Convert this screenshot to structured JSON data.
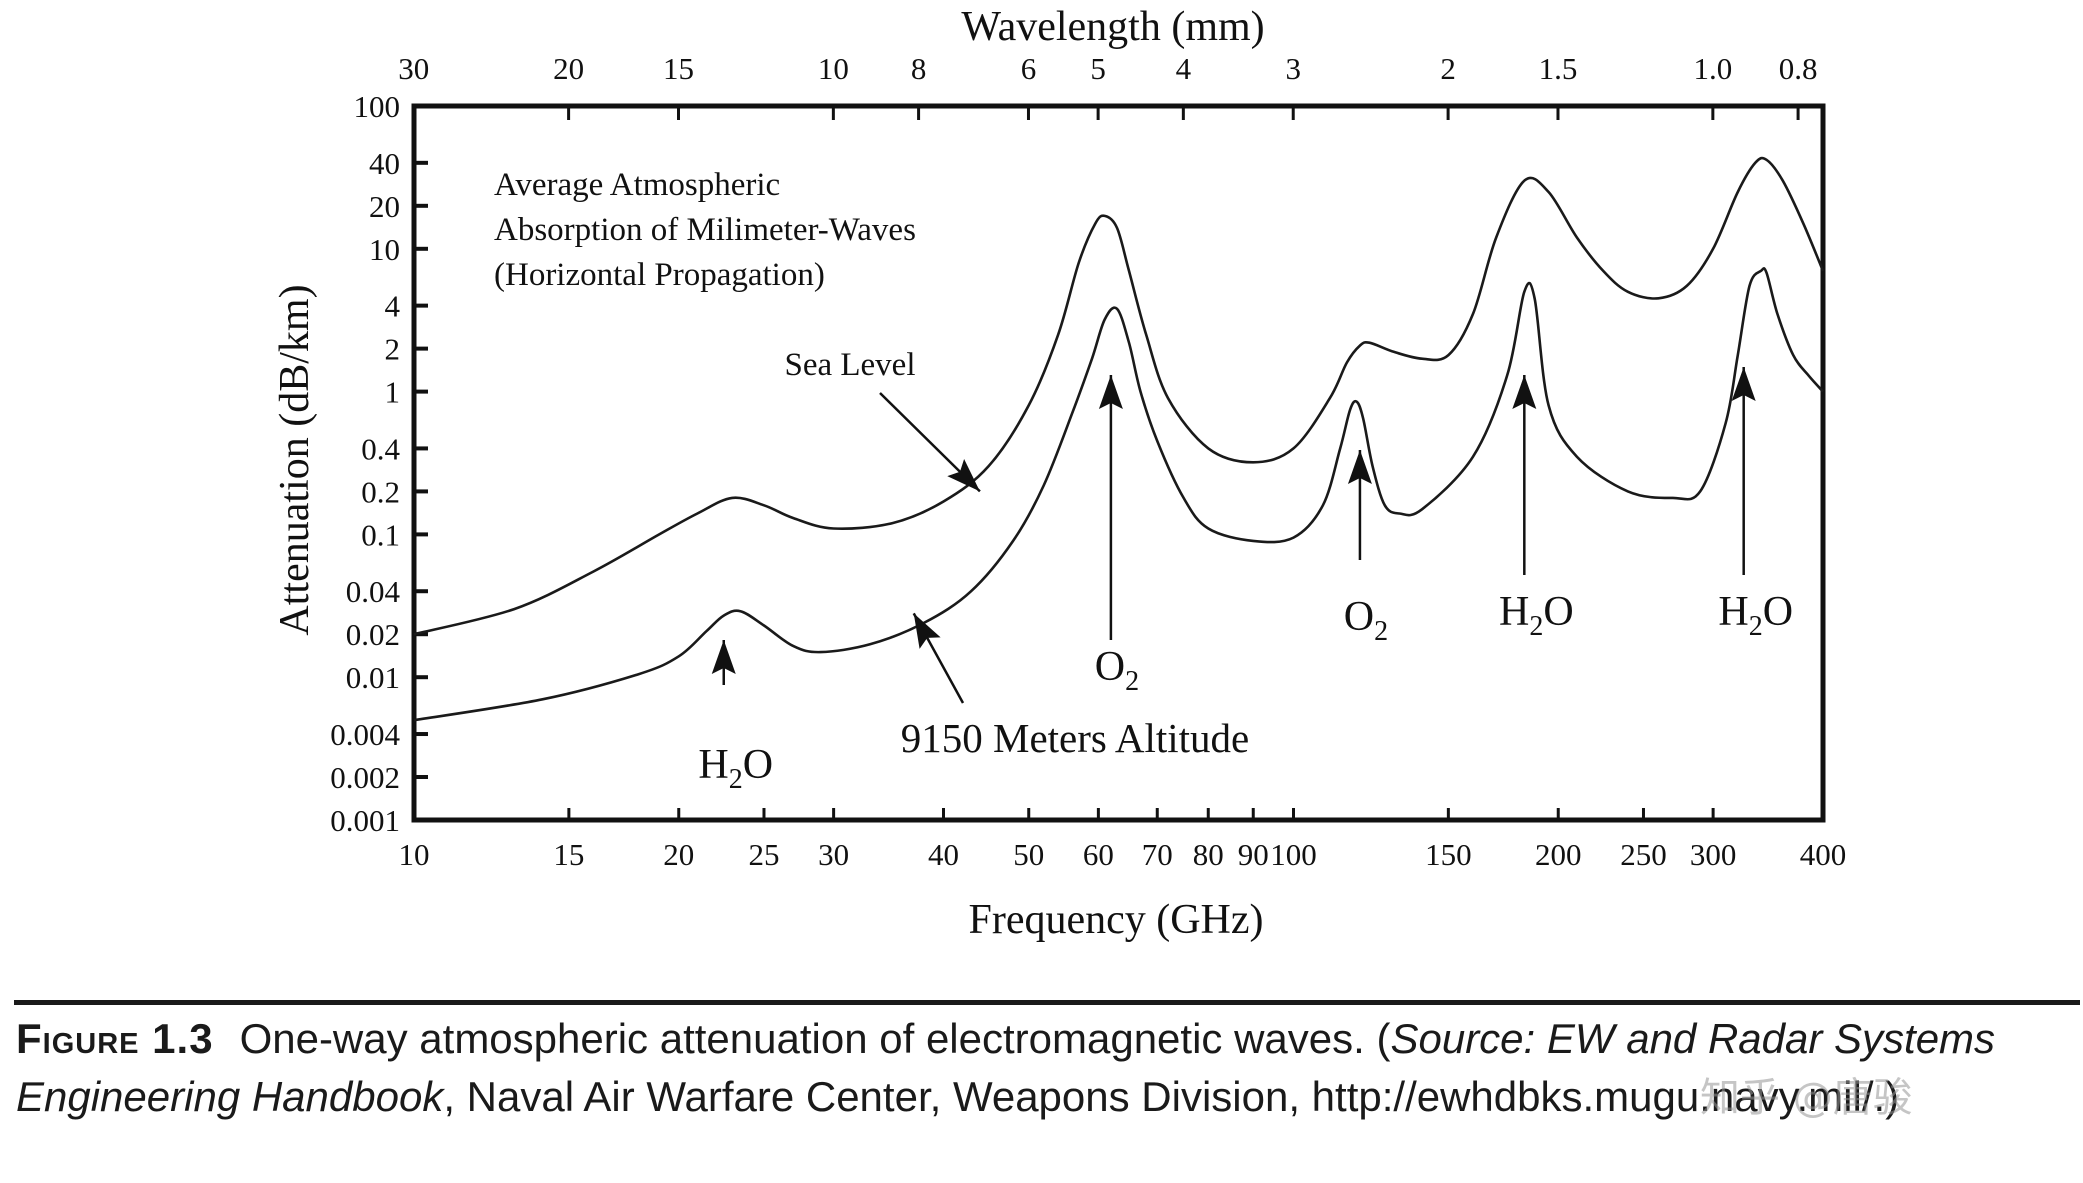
{
  "chart_data": {
    "type": "line",
    "title_lines": [
      "Average Atmospheric",
      "Absorption of Milimeter-Waves",
      "(Horizontal Propagation)"
    ],
    "xlabel": "Frequency (GHz)",
    "ylabel": "Attenuation (dB/km)",
    "top_xlabel": "Wavelength (mm)",
    "x_scale": "log",
    "y_scale": "log",
    "xlim": [
      10,
      400
    ],
    "ylim": [
      0.001,
      100
    ],
    "x_ticks": [
      10,
      15,
      20,
      25,
      30,
      40,
      50,
      60,
      70,
      80,
      90,
      100,
      150,
      200,
      250,
      300,
      400
    ],
    "y_ticks": [
      0.001,
      0.002,
      0.004,
      0.01,
      0.02,
      0.04,
      0.1,
      0.2,
      0.4,
      1,
      2,
      4,
      10,
      20,
      40,
      100
    ],
    "y_tick_labels": [
      "0.001",
      "0.002",
      "0.004",
      "0.01",
      "0.02",
      "0.04",
      "0.1",
      "0.2",
      "0.4",
      "1",
      "2",
      "4",
      "10",
      "20",
      "40",
      "100"
    ],
    "wavelength_ticks": [
      30,
      20,
      15,
      10,
      8,
      6,
      5,
      4,
      3,
      2,
      1.5,
      1.0,
      0.8
    ],
    "wavelength_tick_labels": [
      "30",
      "20",
      "15",
      "10",
      "8",
      "6",
      "5",
      "4",
      "3",
      "2",
      "1.5",
      "1.0",
      "0.8"
    ],
    "grid": false,
    "series": [
      {
        "name": "Sea Level",
        "x": [
          10,
          13,
          16,
          19,
          21,
          23,
          25,
          27,
          30,
          35,
          40,
          45,
          50,
          54,
          57,
          59.5,
          61,
          63,
          65,
          68,
          72,
          80,
          90,
          100,
          110,
          115,
          119,
          122,
          130,
          140,
          150,
          160,
          170,
          183,
          195,
          210,
          225,
          240,
          260,
          280,
          300,
          320,
          335,
          345,
          360,
          380,
          400
        ],
        "y": [
          0.02,
          0.03,
          0.055,
          0.1,
          0.14,
          0.18,
          0.16,
          0.13,
          0.11,
          0.12,
          0.17,
          0.3,
          0.8,
          2.5,
          8,
          15,
          17,
          14,
          7,
          2.5,
          0.9,
          0.4,
          0.32,
          0.4,
          0.9,
          1.6,
          2.1,
          2.2,
          1.9,
          1.7,
          1.8,
          3.5,
          12,
          30,
          25,
          12,
          7,
          5,
          4.5,
          5.5,
          10,
          25,
          40,
          42,
          30,
          15,
          7
        ]
      },
      {
        "name": "9150 Meters Altitude",
        "x": [
          10,
          14,
          18,
          20,
          21.5,
          22.5,
          23.5,
          25,
          27,
          29,
          33,
          38,
          43,
          48,
          52,
          56,
          59,
          61,
          63,
          65,
          67,
          70,
          75,
          80,
          90,
          100,
          108,
          113,
          116,
          118,
          120,
          123,
          127,
          132,
          140,
          160,
          175,
          183,
          188,
          195,
          210,
          240,
          270,
          290,
          310,
          320,
          330,
          340,
          345,
          355,
          370,
          385,
          400
        ],
        "y": [
          0.005,
          0.007,
          0.0105,
          0.014,
          0.021,
          0.027,
          0.029,
          0.023,
          0.0165,
          0.015,
          0.017,
          0.024,
          0.04,
          0.09,
          0.22,
          0.7,
          1.7,
          3.2,
          3.8,
          2.2,
          1,
          0.45,
          0.18,
          0.11,
          0.09,
          0.095,
          0.16,
          0.4,
          0.75,
          0.85,
          0.65,
          0.3,
          0.16,
          0.14,
          0.15,
          0.35,
          1.3,
          5,
          4.5,
          0.8,
          0.35,
          0.2,
          0.18,
          0.2,
          0.6,
          1.8,
          5.5,
          7,
          6.8,
          3.5,
          1.8,
          1.3,
          1
        ]
      }
    ],
    "annotations": [
      {
        "text": "Sea Level",
        "kind": "series-label",
        "arrow_to": {
          "x": 44,
          "y": 0.2
        }
      },
      {
        "text": "9150 Meters Altitude",
        "kind": "series-label",
        "arrow_to": {
          "x": 37,
          "y": 0.028
        }
      },
      {
        "base": "H",
        "sub": "2",
        "tail": "O",
        "kind": "absorption-peak",
        "x": 22.5
      },
      {
        "base": "O",
        "sub": "2",
        "tail": "",
        "kind": "absorption-peak",
        "x": 62
      },
      {
        "base": "O",
        "sub": "2",
        "tail": "",
        "kind": "absorption-peak",
        "x": 119
      },
      {
        "base": "H",
        "sub": "2",
        "tail": "O",
        "kind": "absorption-peak",
        "x": 183
      },
      {
        "base": "H",
        "sub": "2",
        "tail": "O",
        "kind": "absorption-peak",
        "x": 325
      }
    ]
  },
  "caption": {
    "figure_label": "Figure 1.3",
    "text_before": "One-way atmospheric attenuation of electromagnetic waves. (",
    "source_italic": "Source: EW and Radar Systems Engineering Handbook",
    "text_after": ", Naval Air Warfare Center, Weapons Division, http://ewhdbks.mugu.navy.mil/.)"
  },
  "watermark": "知乎 @唐骏"
}
